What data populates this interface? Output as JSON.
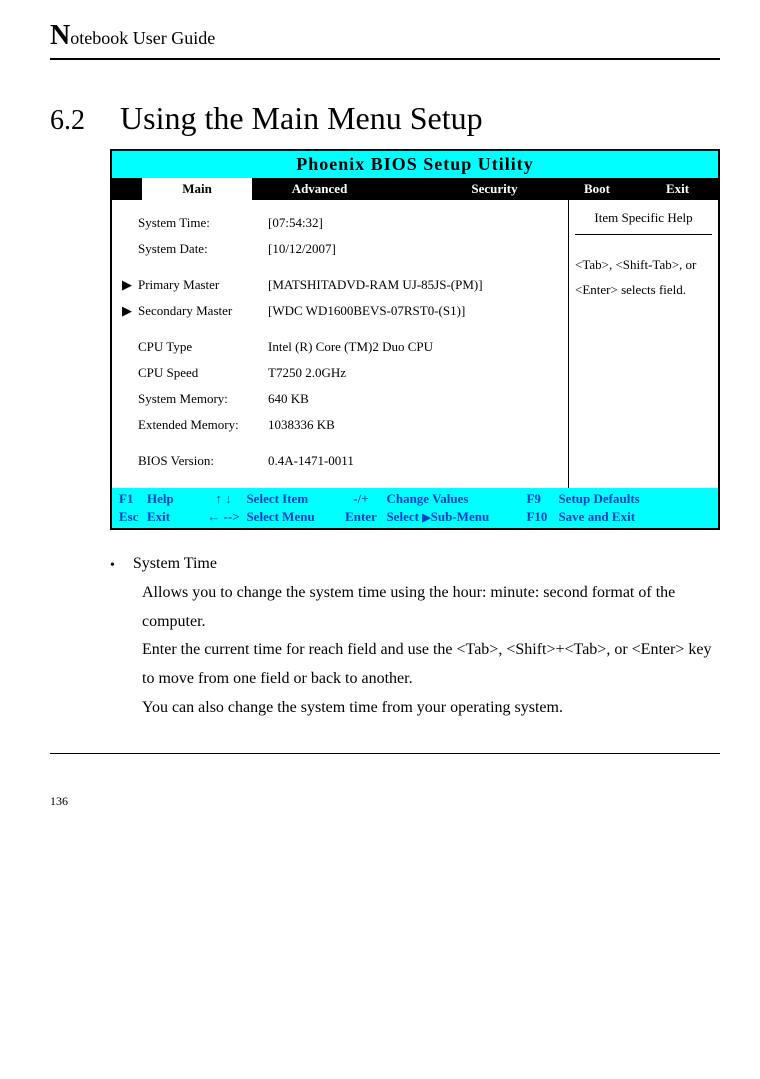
{
  "header": {
    "dropcap": "N",
    "rest": "otebook User Guide"
  },
  "section": {
    "num": "6.2",
    "title": "Using the Main Menu Setup"
  },
  "bios": {
    "title": "Phoenix BIOS Setup Utility",
    "tabs": {
      "main": "Main",
      "advanced": "Advanced",
      "security": "Security",
      "boot": "Boot",
      "exit": "Exit"
    },
    "rows": [
      {
        "arrow": "",
        "label": "System Time:",
        "value": "[07:54:32]"
      },
      {
        "arrow": "",
        "label": "System Date:",
        "value": "[10/12/2007]"
      },
      {
        "arrow": "",
        "label": "",
        "value": ""
      },
      {
        "arrow": "▶",
        "label": "Primary Master",
        "value": "[MATSHITADVD-RAM UJ-85JS-(PM)]"
      },
      {
        "arrow": "▶",
        "label": "Secondary Master",
        "value": "[WDC WD1600BEVS-07RST0-(S1)]"
      },
      {
        "arrow": "",
        "label": "",
        "value": ""
      },
      {
        "arrow": "",
        "label": "CPU Type",
        "value": "Intel (R) Core (TM)2 Duo CPU"
      },
      {
        "arrow": "",
        "label": "CPU Speed",
        "value": "T7250   2.0GHz"
      },
      {
        "arrow": "",
        "label": "System Memory:",
        "value": "640 KB"
      },
      {
        "arrow": "",
        "label": "Extended Memory:",
        "value": "1038336 KB"
      },
      {
        "arrow": "",
        "label": "",
        "value": ""
      },
      {
        "arrow": "",
        "label": "BIOS Version:",
        "value": "0.4A-1471-0011"
      }
    ],
    "help": {
      "title": "Item Specific Help",
      "text": "<Tab>, <Shift-Tab>, or <Enter> selects field."
    },
    "footer": {
      "r1": {
        "k1": "F1",
        "t1": "Help",
        "a1": "↑ ↓",
        "l1": "Select Item",
        "m1": "-/+",
        "v1": "Change Values",
        "fk1": "F9",
        "d1": "Setup Defaults"
      },
      "r2": {
        "k1": "Esc",
        "t1": "Exit",
        "a1": "← -->",
        "l1": "Select Menu",
        "m1": "Enter",
        "v1_a": "Select ",
        "v1_b": "Sub-Menu",
        "fk1": "F10",
        "d1": "Save and Exit"
      }
    }
  },
  "body": {
    "bullet": "•",
    "item_title": "System Time",
    "p1": "Allows you to change the system time using the hour: minute: second format of the computer.",
    "p2": "Enter the current time for reach field and use the <Tab>, <Shift>+<Tab>, or <Enter> key to move from one field or back to another.",
    "p3": "You can also change the system time from your operating system."
  },
  "pagenum": "136"
}
